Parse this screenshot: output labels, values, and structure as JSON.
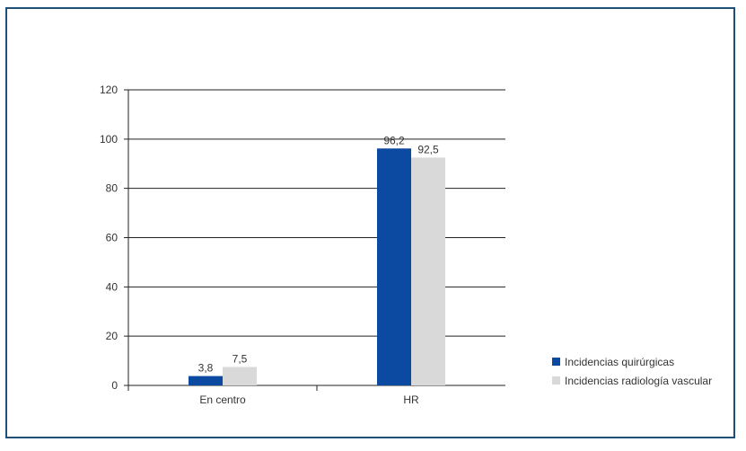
{
  "chart_data": {
    "type": "bar",
    "categories": [
      "En centro",
      "HR"
    ],
    "series": [
      {
        "name": "Incidencias quirúrgicas",
        "color": "#0b4aa0",
        "values": [
          3.8,
          96.2
        ],
        "labels": [
          "3,8",
          "96,2"
        ]
      },
      {
        "name": "Incidencias radiología vascular",
        "color": "#d9d9d9",
        "values": [
          7.5,
          92.5
        ],
        "labels": [
          "7,5",
          "92,5"
        ]
      }
    ],
    "ylim": [
      0,
      120
    ],
    "yticks": [
      0,
      20,
      40,
      60,
      80,
      100,
      120
    ],
    "grid": true,
    "legend": "bottom-right",
    "title": "",
    "xlabel": "",
    "ylabel": ""
  }
}
